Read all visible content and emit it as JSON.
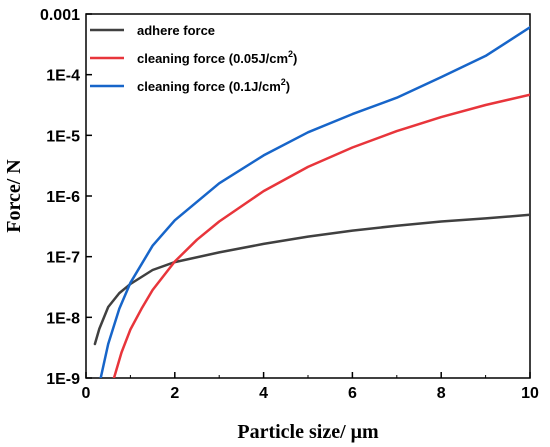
{
  "chart_data": {
    "type": "line",
    "title": "",
    "xlabel": "Particle size/ μm",
    "ylabel": "Force/ N",
    "xlim": [
      0,
      10
    ],
    "ylim_log10": [
      -9,
      -3
    ],
    "y_scale": "log",
    "xticks": [
      0,
      2,
      4,
      6,
      8,
      10
    ],
    "xtick_labels": [
      "0",
      "2",
      "4",
      "6",
      "8",
      "10"
    ],
    "yticks_log10": [
      -9,
      -8,
      -7,
      -6,
      -5,
      -4,
      -3
    ],
    "ytick_labels": [
      "1E-9",
      "1E-8",
      "1E-7",
      "1E-6",
      "1E-5",
      "1E-4",
      "0.001"
    ],
    "grid": false,
    "legend_position": "top-left",
    "series": [
      {
        "name_base": "adhere force",
        "name_sup": "",
        "name_end": "",
        "color": "#404040",
        "x": [
          0.2,
          0.3,
          0.5,
          0.75,
          1,
          1.5,
          2,
          3,
          4,
          5,
          6,
          7,
          8,
          9,
          10
        ],
        "y_log10": [
          -8.44,
          -8.19,
          -7.83,
          -7.6,
          -7.45,
          -7.22,
          -7.09,
          -6.93,
          -6.79,
          -6.67,
          -6.57,
          -6.49,
          -6.42,
          -6.37,
          -6.31
        ]
      },
      {
        "name_base": "cleaning force (0.05J/cm",
        "name_sup": "2",
        "name_end": ")",
        "color": "#e8353b",
        "x": [
          0.63,
          0.8,
          1,
          1.25,
          1.5,
          2,
          2.5,
          3,
          4,
          5,
          6,
          7,
          8,
          9,
          10
        ],
        "y_log10": [
          -9.0,
          -8.58,
          -8.2,
          -7.86,
          -7.55,
          -7.08,
          -6.72,
          -6.42,
          -5.92,
          -5.52,
          -5.2,
          -4.93,
          -4.7,
          -4.5,
          -4.33
        ]
      },
      {
        "name_base": "cleaning force (0.1J/cm",
        "name_sup": "2",
        "name_end": ")",
        "color": "#1765c9",
        "x": [
          0.33,
          0.5,
          0.75,
          1,
          1.5,
          2,
          3,
          4,
          5,
          6,
          7,
          8,
          9,
          10
        ],
        "y_log10": [
          -9.0,
          -8.44,
          -7.86,
          -7.43,
          -6.82,
          -6.4,
          -5.79,
          -5.33,
          -4.95,
          -4.65,
          -4.38,
          -4.04,
          -3.69,
          -3.22
        ]
      }
    ]
  }
}
